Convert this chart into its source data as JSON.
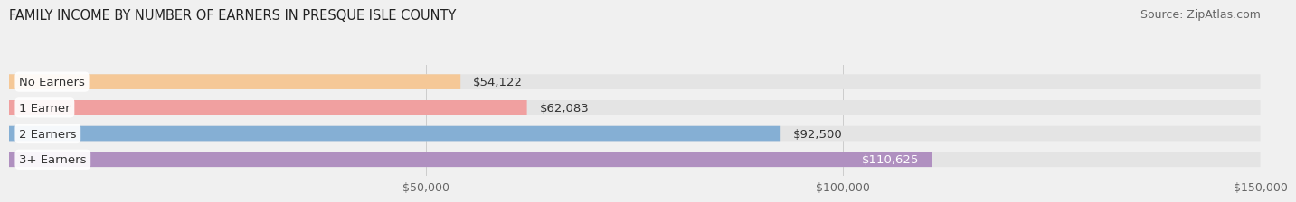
{
  "title": "FAMILY INCOME BY NUMBER OF EARNERS IN PRESQUE ISLE COUNTY",
  "source": "Source: ZipAtlas.com",
  "categories": [
    "No Earners",
    "1 Earner",
    "2 Earners",
    "3+ Earners"
  ],
  "values": [
    54122,
    62083,
    92500,
    110625
  ],
  "bar_colors": [
    "#f5c897",
    "#f0a0a0",
    "#85afd4",
    "#b090c0"
  ],
  "label_colors": [
    "#333333",
    "#333333",
    "#333333",
    "#ffffff"
  ],
  "value_labels": [
    "$54,122",
    "$62,083",
    "$92,500",
    "$110,625"
  ],
  "xlim": [
    0,
    150000
  ],
  "xticks": [
    50000,
    100000,
    150000
  ],
  "xtick_labels": [
    "$50,000",
    "$100,000",
    "$150,000"
  ],
  "bar_height": 0.58,
  "background_color": "#f0f0f0",
  "bar_background_color": "#e4e4e4",
  "title_fontsize": 10.5,
  "source_fontsize": 9,
  "label_fontsize": 9.5,
  "value_fontsize": 9.5,
  "tick_fontsize": 9
}
